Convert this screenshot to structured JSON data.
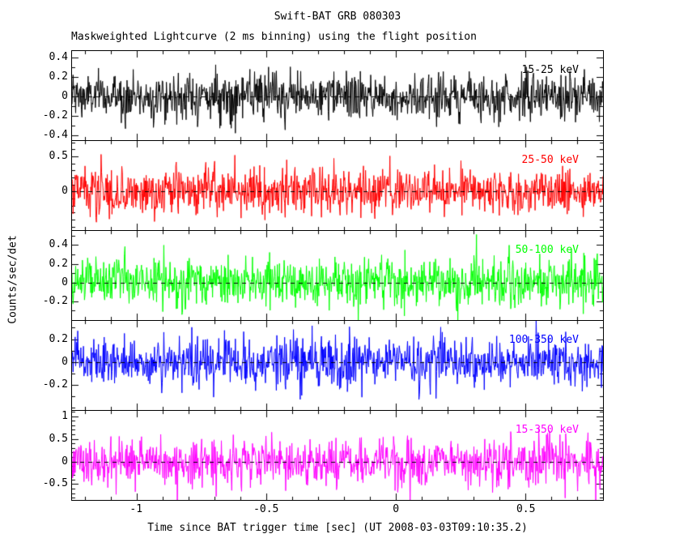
{
  "figure": {
    "background_color": "#ffffff",
    "axis_color": "#000000",
    "zero_line_style": "dashed"
  },
  "chart_data": {
    "type": "line",
    "title": "Swift-BAT GRB 080303",
    "subtitle": "Maskweighted Lightcurve (2 ms binning) using the flight position",
    "xlabel": "Time since BAT trigger time [sec] (UT 2008-03-03T09:10:35.2)",
    "ylabel": "Counts/sec/det",
    "x_range": [
      -1.25,
      0.8
    ],
    "x_ticks": [
      {
        "v": -1,
        "label": "-1"
      },
      {
        "v": -0.5,
        "label": "-0.5"
      },
      {
        "v": 0,
        "label": "0"
      },
      {
        "v": 0.5,
        "label": "0.5"
      }
    ],
    "x_minor_step": 0.1,
    "bin_width_sec": 0.002,
    "n_bins": 1025,
    "grid": false,
    "legend_position": "inside-top-right-per-panel",
    "signal_description": "mask-weighted background noise fluctuating around zero in every band; dashed zero reference line in each panel",
    "panels": [
      {
        "band": "15-25 keV",
        "color": "#000000",
        "mean": 0,
        "noise_sigma": 0.12,
        "y_range": [
          -0.45,
          0.47
        ],
        "y_ticks": [
          {
            "v": 0.4,
            "label": "0.4"
          },
          {
            "v": 0.2,
            "label": "0.2"
          },
          {
            "v": 0,
            "label": "0"
          },
          {
            "v": -0.2,
            "label": "-0.2"
          },
          {
            "v": -0.4,
            "label": "-0.4"
          }
        ]
      },
      {
        "band": "25-50 keV",
        "color": "#ff0000",
        "mean": 0,
        "noise_sigma": 0.17,
        "y_range": [
          -0.55,
          0.72
        ],
        "y_ticks": [
          {
            "v": 0.5,
            "label": "0.5"
          },
          {
            "v": 0,
            "label": "0"
          }
        ]
      },
      {
        "band": "50-100 keV",
        "color": "#00ff00",
        "mean": 0,
        "noise_sigma": 0.13,
        "y_range": [
          -0.4,
          0.55
        ],
        "y_ticks": [
          {
            "v": 0.4,
            "label": "0.4"
          },
          {
            "v": 0.2,
            "label": "0.2"
          },
          {
            "v": 0,
            "label": "0"
          },
          {
            "v": -0.2,
            "label": "-0.2"
          }
        ]
      },
      {
        "band": "100-350 keV",
        "color": "#0000ff",
        "mean": 0,
        "noise_sigma": 0.105,
        "y_range": [
          -0.42,
          0.36
        ],
        "y_ticks": [
          {
            "v": 0.2,
            "label": "0.2"
          },
          {
            "v": 0,
            "label": "0"
          },
          {
            "v": -0.2,
            "label": "-0.2"
          }
        ]
      },
      {
        "band": "15-350 keV",
        "color": "#ff00ff",
        "mean": 0,
        "noise_sigma": 0.27,
        "y_range": [
          -0.85,
          1.12
        ],
        "y_ticks": [
          {
            "v": 1,
            "label": "1"
          },
          {
            "v": 0.5,
            "label": "0.5"
          },
          {
            "v": 0,
            "label": "0"
          },
          {
            "v": -0.5,
            "label": "-0.5"
          }
        ]
      }
    ]
  }
}
